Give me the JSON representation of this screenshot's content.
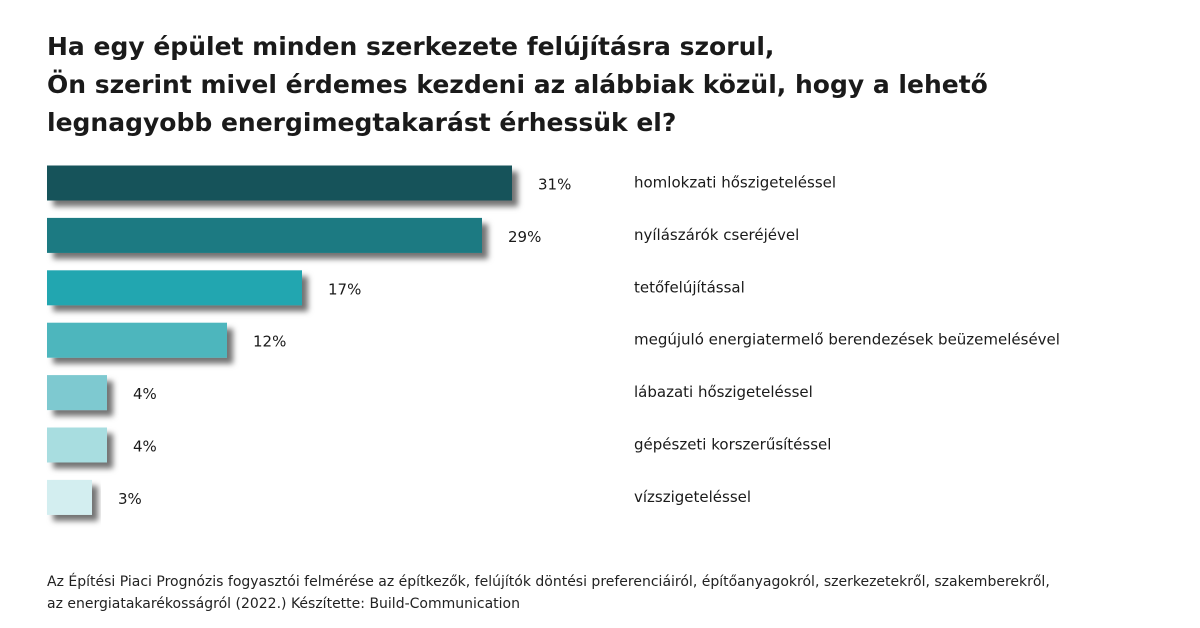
{
  "chart_data": {
    "type": "bar",
    "title": [
      "Ha egy épület minden szerkezete felújításra szorul,",
      "Ön szerint mivel érdemes kezdeni az alábbiak közül, hogy a lehető",
      "legnagyobb energimegtakarást érhessük el?"
    ],
    "categories": [
      "homlokzati hőszigeteléssel",
      "nyílászárók cseréjével",
      "tetőfelújítással",
      "megújuló energiatermelő berendezések beüzemelésével",
      "lábazati hőszigeteléssel",
      "gépészeti korszerűsítéssel",
      "vízszigeteléssel"
    ],
    "values": [
      31,
      29,
      17,
      12,
      4,
      4,
      3
    ],
    "value_labels": [
      "31%",
      "29%",
      "17%",
      "12%",
      "4%",
      "4%",
      "3%"
    ],
    "colors": [
      "#12525a",
      "#1a7a82",
      "#22a6b0",
      "#4db6bd",
      "#7ec9d0",
      "#a8dde0",
      "#d3eef0"
    ],
    "source": [
      "Az Építési Piaci Prognózis fogyasztói felmérése az építkezők, felújítók döntési preferenciáiról, építőanyagokról, szerkezetekről, szakemberekről,",
      "az energiatakarékosságról (2022.)    Készítette: Build-Communication"
    ]
  }
}
